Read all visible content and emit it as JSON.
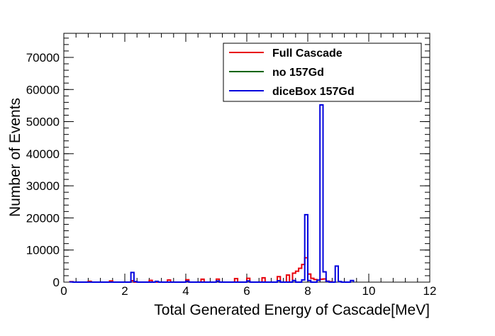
{
  "chart_data": {
    "type": "histogram",
    "title": "",
    "xlabel": "Total Generated Energy of Cascade[MeV]",
    "ylabel": "Number of Events",
    "xlim": [
      0,
      12
    ],
    "ylim": [
      0,
      77500
    ],
    "x_ticks": [
      "0",
      "2",
      "4",
      "6",
      "8",
      "10",
      "12"
    ],
    "y_ticks": [
      "0",
      "10000",
      "20000",
      "30000",
      "40000",
      "50000",
      "60000",
      "70000"
    ],
    "x_tick_values": [
      0,
      2,
      4,
      6,
      8,
      10,
      12
    ],
    "y_tick_values": [
      0,
      10000,
      20000,
      30000,
      40000,
      50000,
      60000,
      70000
    ],
    "bin_width": 0.1,
    "legend": {
      "placement": "top-right"
    },
    "series": [
      {
        "name": "Full Cascade",
        "color": "#e8000b",
        "bins": [
          [
            0.2,
            150
          ],
          [
            0.8,
            250
          ],
          [
            1.5,
            350
          ],
          [
            2.2,
            450
          ],
          [
            2.8,
            550
          ],
          [
            3.4,
            650
          ],
          [
            4.0,
            750
          ],
          [
            4.5,
            900
          ],
          [
            5.0,
            950
          ],
          [
            5.6,
            1100
          ],
          [
            6.0,
            1200
          ],
          [
            6.5,
            1350
          ],
          [
            7.0,
            1700
          ],
          [
            7.3,
            2200
          ],
          [
            7.5,
            2800
          ],
          [
            7.6,
            3400
          ],
          [
            7.7,
            4300
          ],
          [
            7.8,
            5500
          ],
          [
            7.9,
            7600
          ],
          [
            8.0,
            2500
          ],
          [
            8.1,
            1200
          ],
          [
            8.2,
            800
          ],
          [
            8.3,
            600
          ],
          [
            8.4,
            900
          ],
          [
            8.5,
            1000
          ],
          [
            8.6,
            300
          ],
          [
            8.7,
            150
          ]
        ]
      },
      {
        "name": "no 157Gd",
        "color": "#006400",
        "bins": []
      },
      {
        "name": "diceBox 157Gd",
        "color": "#0000dd",
        "bins": [
          [
            0.2,
            50
          ],
          [
            2.2,
            3000
          ],
          [
            2.3,
            200
          ],
          [
            3.0,
            250
          ],
          [
            4.0,
            300
          ],
          [
            5.0,
            350
          ],
          [
            6.0,
            400
          ],
          [
            7.0,
            450
          ],
          [
            7.5,
            500
          ],
          [
            7.8,
            700
          ],
          [
            7.9,
            21000
          ],
          [
            8.0,
            500
          ],
          [
            8.3,
            600
          ],
          [
            8.4,
            55200
          ],
          [
            8.5,
            3200
          ],
          [
            8.6,
            250
          ],
          [
            8.9,
            5000
          ],
          [
            9.0,
            200
          ],
          [
            9.4,
            500
          ]
        ]
      }
    ]
  }
}
